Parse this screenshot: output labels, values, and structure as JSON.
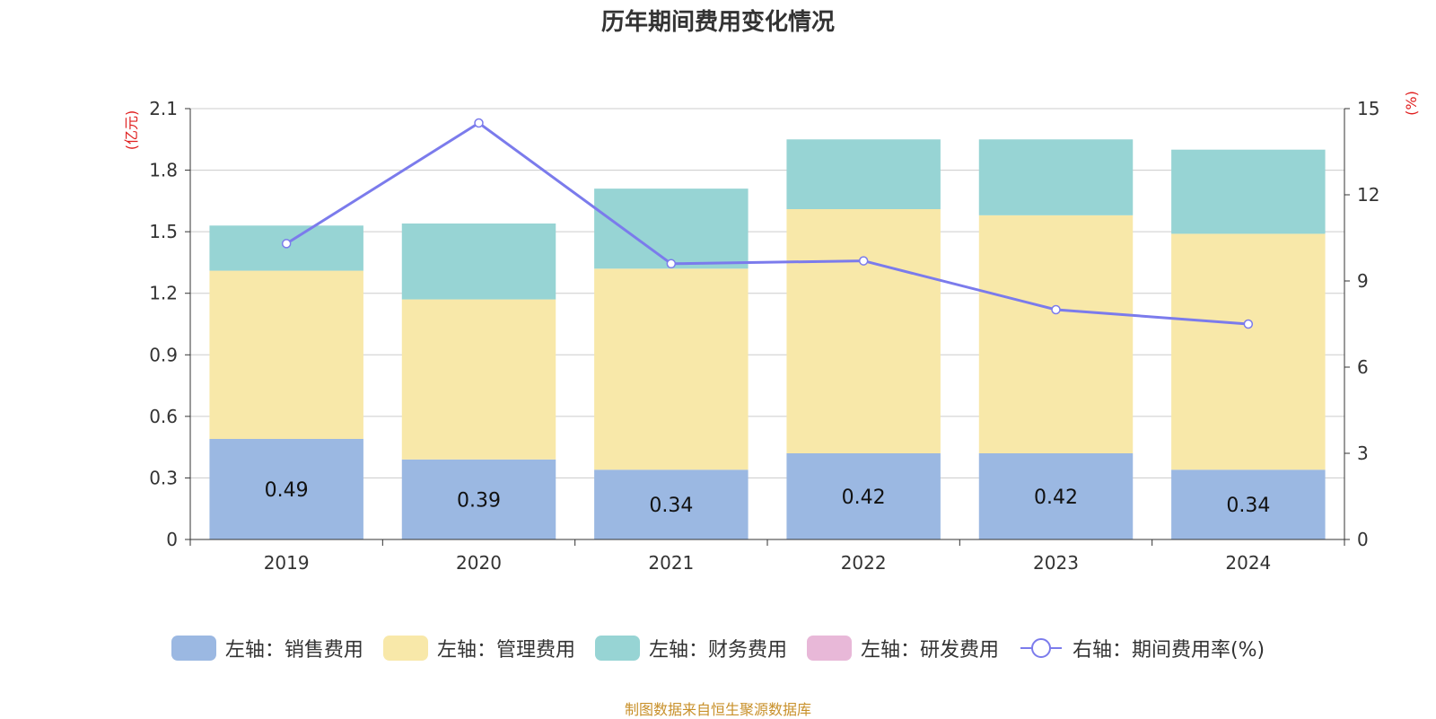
{
  "chart_data": {
    "type": "bar",
    "title": "历年期间费用变化情况",
    "categories": [
      "2019",
      "2020",
      "2021",
      "2022",
      "2023",
      "2024"
    ],
    "stacked": true,
    "series": [
      {
        "name": "左轴：销售费用",
        "axis": "left",
        "type": "bar",
        "color": "#9bb8e2",
        "values": [
          0.49,
          0.39,
          0.34,
          0.42,
          0.42,
          0.34
        ],
        "value_labels": [
          "0.49",
          "0.39",
          "0.34",
          "0.42",
          "0.42",
          "0.34"
        ]
      },
      {
        "name": "左轴：管理费用",
        "axis": "left",
        "type": "bar",
        "color": "#f8e8a9",
        "values": [
          0.82,
          0.78,
          0.98,
          1.19,
          1.16,
          1.15
        ]
      },
      {
        "name": "左轴：财务费用",
        "axis": "left",
        "type": "bar",
        "color": "#97d4d4",
        "values": [
          0.22,
          0.37,
          0.39,
          0.34,
          0.37,
          0.41
        ]
      },
      {
        "name": "左轴：研发费用",
        "axis": "left",
        "type": "bar",
        "color": "#e8b8d8",
        "values": [
          0,
          0,
          0,
          0,
          0,
          0
        ]
      },
      {
        "name": "右轴：期间费用率(%)",
        "axis": "right",
        "type": "line",
        "color": "#7b7bec",
        "values": [
          10.3,
          14.5,
          9.6,
          9.7,
          8.0,
          7.5
        ]
      }
    ],
    "left_axis": {
      "unit": "(亿元)",
      "ylim": [
        0,
        2.1
      ],
      "ticks": [
        "0",
        "0.3",
        "0.6",
        "0.9",
        "1.2",
        "1.5",
        "1.8",
        "2.1"
      ]
    },
    "right_axis": {
      "unit": "(%)",
      "ylim": [
        0,
        15
      ],
      "ticks": [
        "0",
        "3",
        "6",
        "9",
        "12",
        "15"
      ]
    },
    "grid": true,
    "legend_position": "bottom"
  },
  "source_note": "制图数据来自恒生聚源数据库"
}
